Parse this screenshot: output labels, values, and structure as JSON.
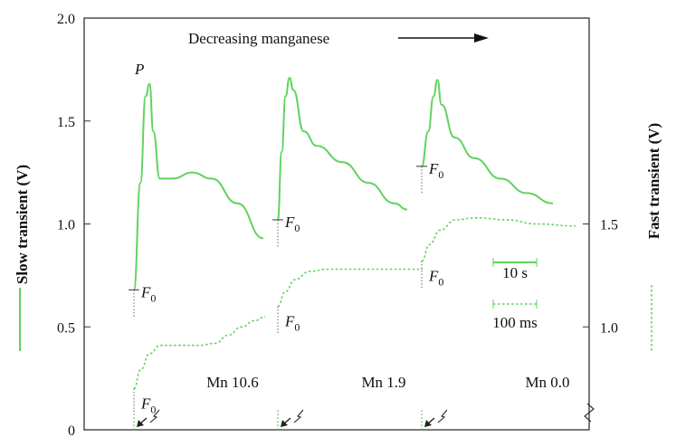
{
  "chart_data": {
    "type": "line",
    "title": "Decreasing manganese",
    "left_axis": {
      "label": "Slow transient (V)",
      "ylim": [
        0,
        2.0
      ],
      "ticks": [
        "0",
        "0.5",
        "1.0",
        "1.5",
        "2.0"
      ]
    },
    "right_axis": {
      "label": "Fast transient (V)",
      "ticks": [
        "1.0",
        "1.5"
      ]
    },
    "conditions": [
      {
        "label": "Mn 10.6"
      },
      {
        "label": "Mn 1.9"
      },
      {
        "label": "Mn 0.0"
      }
    ],
    "peak_label": "P",
    "f0_label": "F",
    "f0_sub": "0",
    "scale_bars": {
      "slow": "10 s",
      "fast": "100 ms"
    },
    "series": [
      {
        "kind": "slow",
        "segment": 0,
        "points": [
          [
            0,
            0.68
          ],
          [
            0.05,
            1.2
          ],
          [
            0.09,
            1.62
          ],
          [
            0.12,
            1.68
          ],
          [
            0.15,
            1.45
          ],
          [
            0.2,
            1.22
          ],
          [
            0.3,
            1.22
          ],
          [
            0.45,
            1.25
          ],
          [
            0.6,
            1.22
          ],
          [
            0.8,
            1.1
          ],
          [
            1.0,
            0.93
          ]
        ]
      },
      {
        "kind": "slow",
        "segment": 1,
        "points": [
          [
            0,
            1.02
          ],
          [
            0.03,
            1.35
          ],
          [
            0.06,
            1.62
          ],
          [
            0.09,
            1.71
          ],
          [
            0.12,
            1.65
          ],
          [
            0.2,
            1.45
          ],
          [
            0.3,
            1.38
          ],
          [
            0.5,
            1.3
          ],
          [
            0.7,
            1.2
          ],
          [
            0.9,
            1.1
          ],
          [
            1.0,
            1.07
          ]
        ]
      },
      {
        "kind": "slow",
        "segment": 2,
        "points": [
          [
            0,
            1.28
          ],
          [
            0.05,
            1.45
          ],
          [
            0.09,
            1.62
          ],
          [
            0.12,
            1.7
          ],
          [
            0.15,
            1.58
          ],
          [
            0.25,
            1.42
          ],
          [
            0.4,
            1.32
          ],
          [
            0.6,
            1.22
          ],
          [
            0.8,
            1.15
          ],
          [
            1.0,
            1.1
          ]
        ]
      },
      {
        "kind": "fast",
        "segment": 0,
        "points": [
          [
            0,
            0.2
          ],
          [
            0.05,
            0.29
          ],
          [
            0.12,
            0.37
          ],
          [
            0.2,
            0.41
          ],
          [
            0.35,
            0.41
          ],
          [
            0.5,
            0.41
          ],
          [
            0.62,
            0.42
          ],
          [
            0.72,
            0.46
          ],
          [
            0.82,
            0.5
          ],
          [
            0.92,
            0.53
          ],
          [
            1.0,
            0.55
          ]
        ]
      },
      {
        "kind": "fast",
        "segment": 1,
        "points": [
          [
            0,
            0.6
          ],
          [
            0.05,
            0.67
          ],
          [
            0.12,
            0.73
          ],
          [
            0.22,
            0.77
          ],
          [
            0.35,
            0.78
          ],
          [
            0.6,
            0.78
          ],
          [
            1.0,
            0.78
          ]
        ]
      },
      {
        "kind": "fast",
        "segment": 2,
        "points": [
          [
            0,
            0.82
          ],
          [
            0.05,
            0.9
          ],
          [
            0.12,
            0.97
          ],
          [
            0.22,
            1.02
          ],
          [
            0.35,
            1.03
          ],
          [
            0.55,
            1.02
          ],
          [
            0.75,
            1.0
          ],
          [
            1.0,
            0.99
          ]
        ]
      }
    ]
  }
}
